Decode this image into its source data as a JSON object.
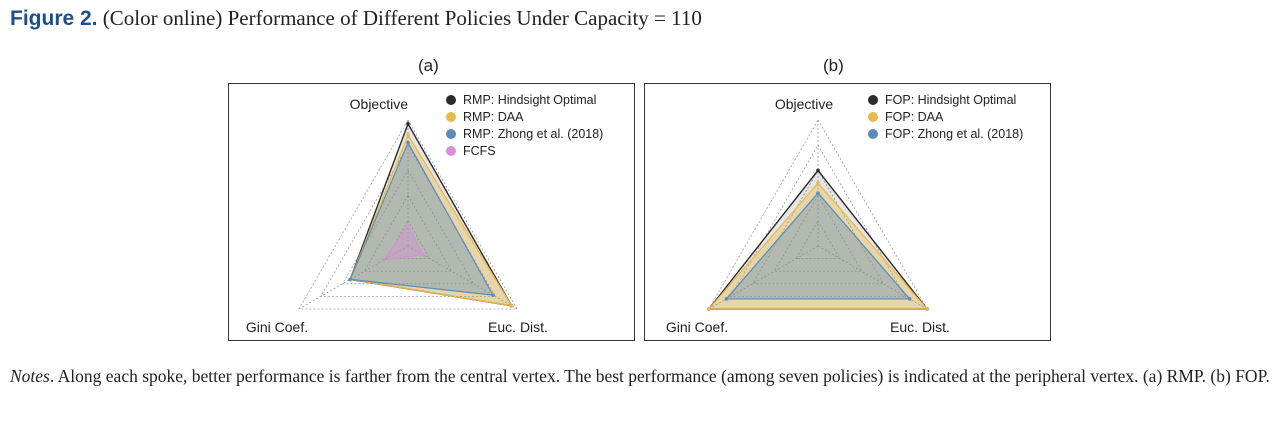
{
  "figure": {
    "label": "Figure 2.",
    "caption": "(Color online) Performance of Different Policies Under Capacity = 110"
  },
  "notes": {
    "label": "Notes",
    "text": ". Along each spoke, better performance is farther from the central vertex. The best performance (among seven policies) is indicated at the peripheral vertex. (a) RMP. (b) FOP."
  },
  "chart_data": [
    {
      "type": "radar",
      "panel": "(a)",
      "axes": [
        "Objective",
        "Euc. Dist.",
        "Gini Coef."
      ],
      "rmax": 1,
      "grid_levels": [
        0.2,
        0.4,
        0.6,
        0.8,
        1.0
      ],
      "grid": true,
      "legend_position": "top-right",
      "series": [
        {
          "name": "RMP: Hindsight Optimal",
          "color": "#2b2b2b",
          "values": [
            0.97,
            0.95,
            0.53
          ]
        },
        {
          "name": "RMP: DAA",
          "color": "#e8b84b",
          "values": [
            0.88,
            0.95,
            0.53
          ]
        },
        {
          "name": "RMP: Zhong et al. (2018)",
          "color": "#5b8db8",
          "values": [
            0.82,
            0.78,
            0.53
          ]
        },
        {
          "name": "FCFS",
          "color": "#d98fd6",
          "values": [
            0.16,
            0.14,
            0.22
          ]
        }
      ]
    },
    {
      "type": "radar",
      "panel": "(b)",
      "axes": [
        "Objective",
        "Euc. Dist.",
        "Gini Coef."
      ],
      "rmax": 1,
      "grid_levels": [
        0.2,
        0.4,
        0.6,
        0.8,
        1.0
      ],
      "grid": true,
      "legend_position": "top-right",
      "series": [
        {
          "name": "FOP: Hindsight Optimal",
          "color": "#2b2b2b",
          "values": [
            0.6,
            1.0,
            1.0
          ]
        },
        {
          "name": "FOP: DAA",
          "color": "#e8b84b",
          "values": [
            0.5,
            1.0,
            1.0
          ]
        },
        {
          "name": "FOP: Zhong et al. (2018)",
          "color": "#5b8db8",
          "values": [
            0.42,
            0.84,
            0.84
          ]
        }
      ]
    }
  ]
}
